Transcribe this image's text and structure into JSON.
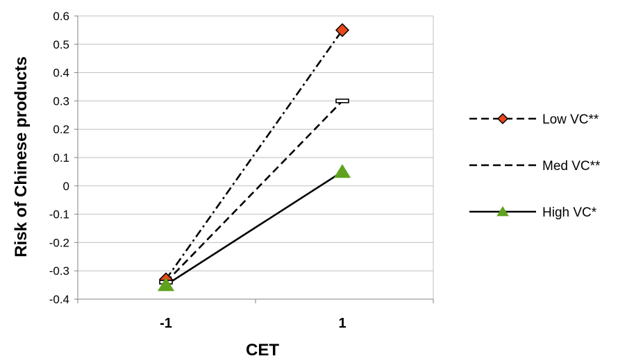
{
  "chart_data": {
    "type": "line",
    "title": "",
    "xlabel": "CET",
    "ylabel": "Risk of Chinese products",
    "categories": [
      "-1",
      "1"
    ],
    "ylim": [
      -0.4,
      0.6
    ],
    "yticks": [
      "0.6",
      "0.5",
      "0.4",
      "0.3",
      "0.2",
      "0.1",
      "0",
      "-0.1",
      "-0.2",
      "-0.3",
      "-0.4"
    ],
    "grid": "horizontal",
    "legend_position": "right",
    "series": [
      {
        "name": "Low VC**",
        "values": [
          -0.33,
          0.55
        ],
        "line_style": "dash-dot",
        "marker": "diamond",
        "marker_color": "#E8471B"
      },
      {
        "name": "Med VC**",
        "values": [
          -0.34,
          0.3
        ],
        "line_style": "dashed",
        "marker": "dash",
        "marker_color": "#000000"
      },
      {
        "name": "High VC*",
        "values": [
          -0.35,
          0.05
        ],
        "line_style": "solid",
        "marker": "triangle",
        "marker_color": "#5FA21E"
      }
    ]
  }
}
